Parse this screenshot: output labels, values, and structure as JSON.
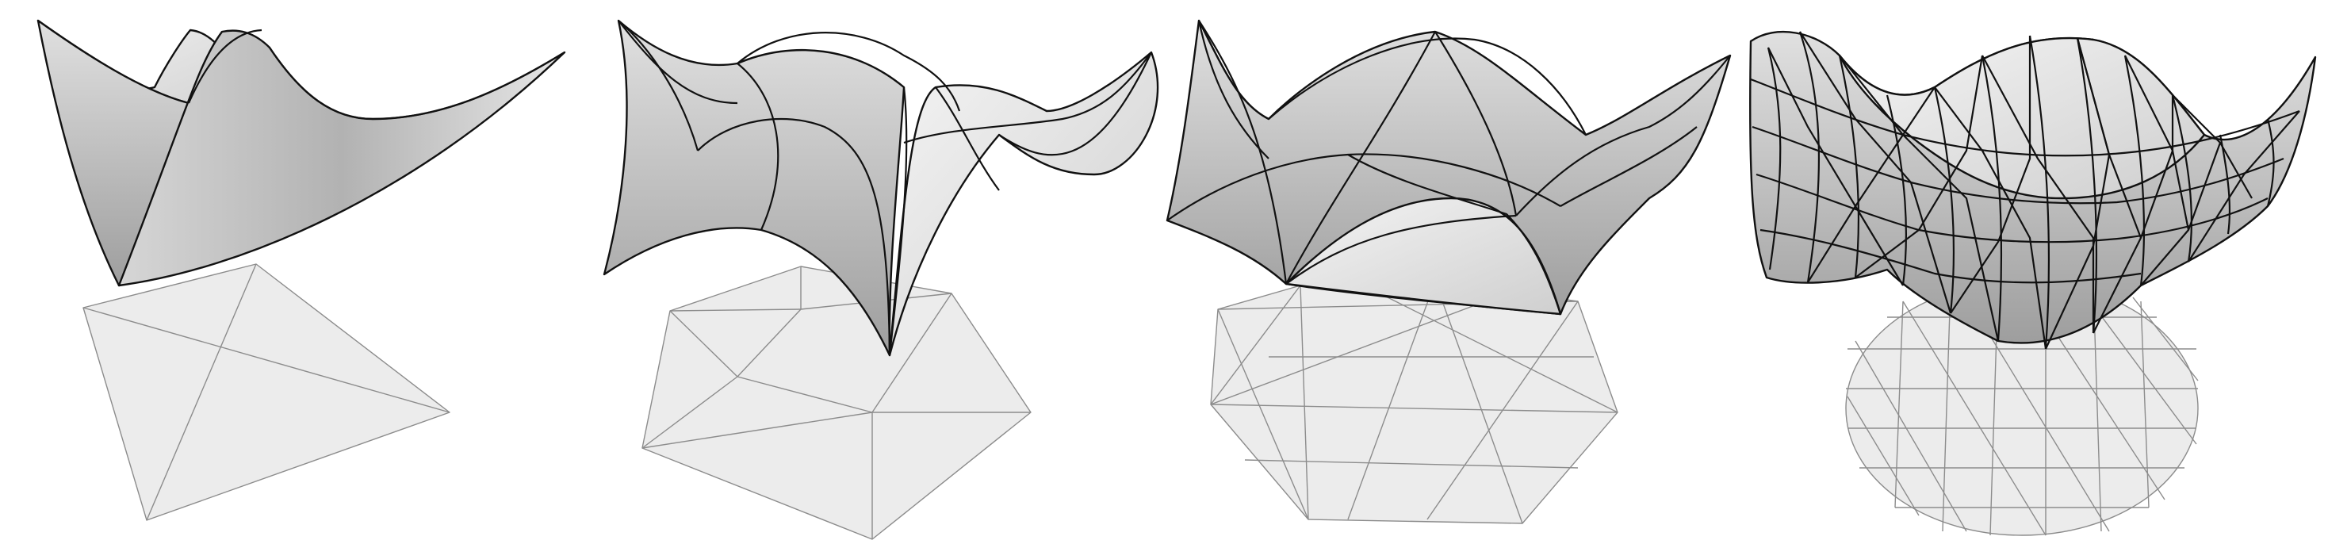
{
  "figure": {
    "description_visible_text": "",
    "panels": [
      {
        "id": "panel-1",
        "domain_triangles": 4,
        "surface_patches": 4
      },
      {
        "id": "panel-2",
        "domain_triangles": 10,
        "surface_patches": 10
      },
      {
        "id": "panel-3",
        "domain_triangles": 24,
        "surface_patches": 24
      },
      {
        "id": "panel-4",
        "domain_triangles": 96,
        "surface_patches": 96
      }
    ],
    "colors": {
      "domain_fill": "#ececec",
      "domain_stroke": "#8c8c8c",
      "surface_light": "#f2f2f2",
      "surface_dark": "#a8a8a8",
      "surface_stroke": "#111111"
    }
  }
}
